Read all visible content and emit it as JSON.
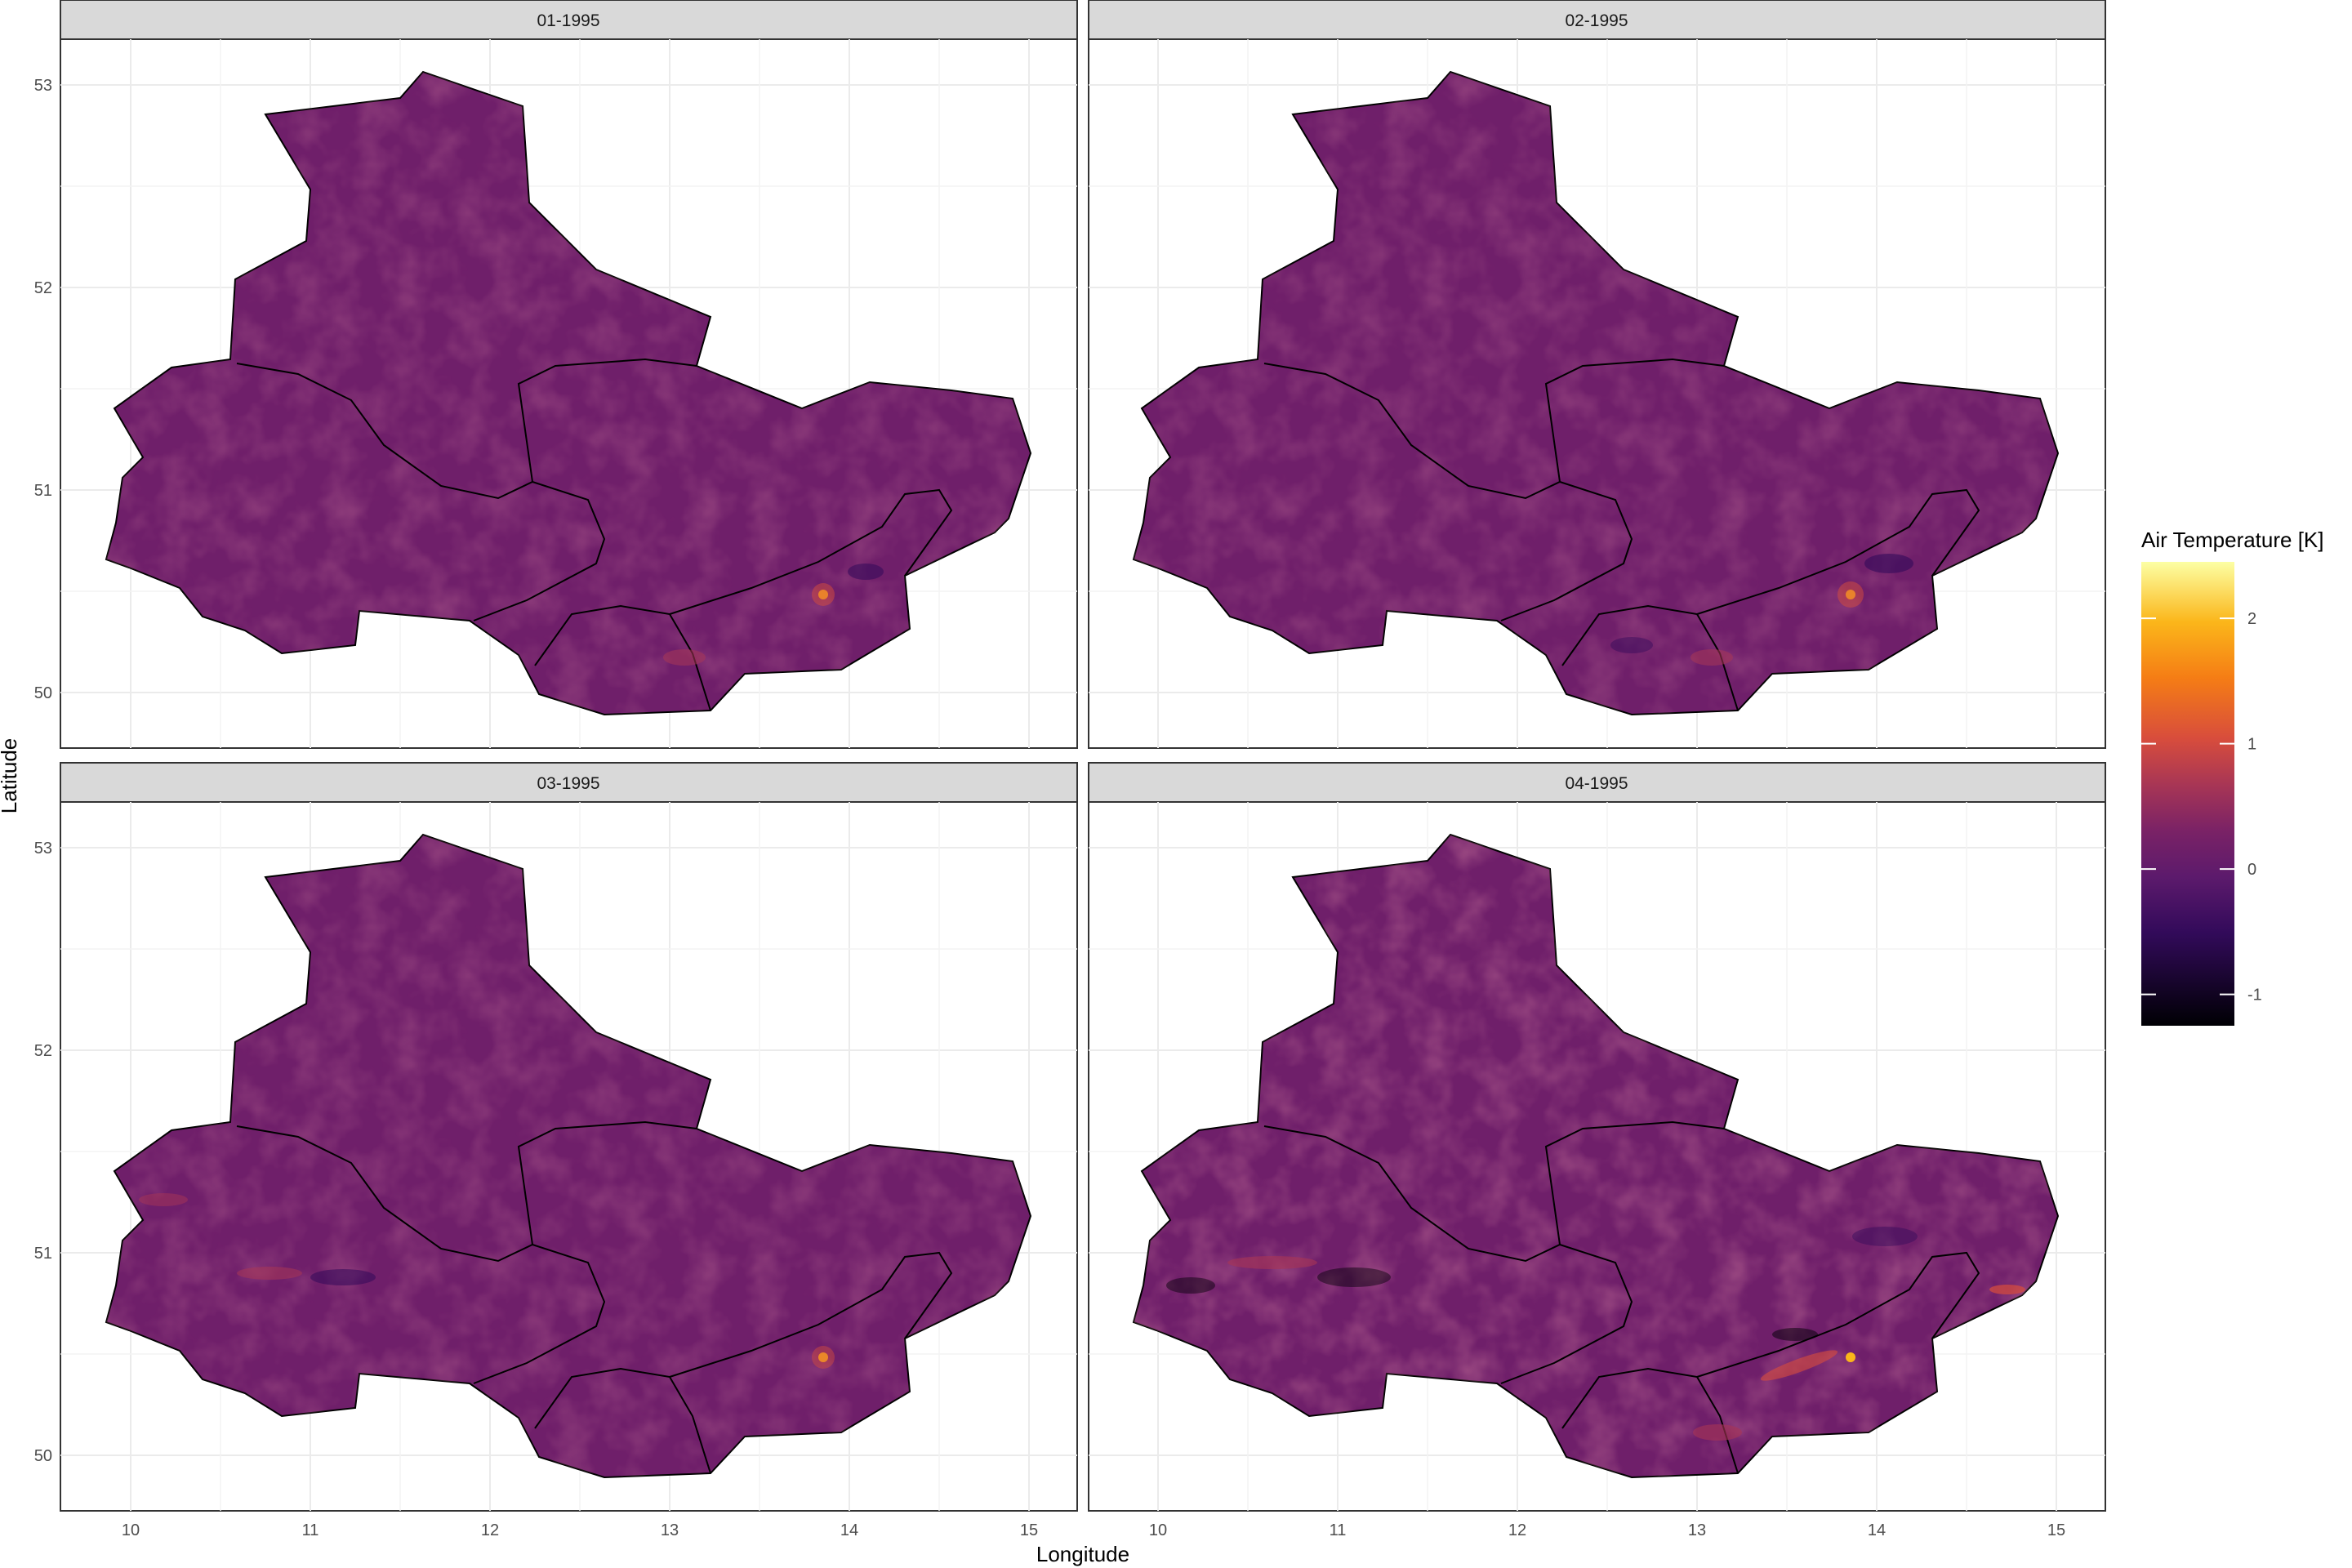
{
  "figure": {
    "x_axis_title": "Longitude",
    "y_axis_title": "Latitude",
    "legend_title": "Air Temperature [K]",
    "legend_ticks": [
      "2",
      "1",
      "0",
      "-1"
    ],
    "legend_tick_values": [
      2,
      1,
      0,
      -1
    ],
    "legend_range": [
      -1.25,
      2.45
    ],
    "x_ticks": [
      "10",
      "11",
      "12",
      "13",
      "14",
      "15"
    ],
    "y_ticks": [
      "53",
      "52",
      "51",
      "50"
    ],
    "panels": [
      {
        "title": "01-1995"
      },
      {
        "title": "02-1995"
      },
      {
        "title": "03-1995"
      },
      {
        "title": "04-1995"
      }
    ],
    "colors": {
      "palette": [
        "#000004",
        "#320a5a",
        "#5c1a6c",
        "#7a2266",
        "#a83655",
        "#d84d3c",
        "#f57d15",
        "#fbb61a",
        "#fcffa4"
      ],
      "region_fill": "#6f1f6a",
      "region_border": "#000000",
      "strip_fill": "#d9d9d9",
      "grid": "#ebebeb"
    }
  }
}
